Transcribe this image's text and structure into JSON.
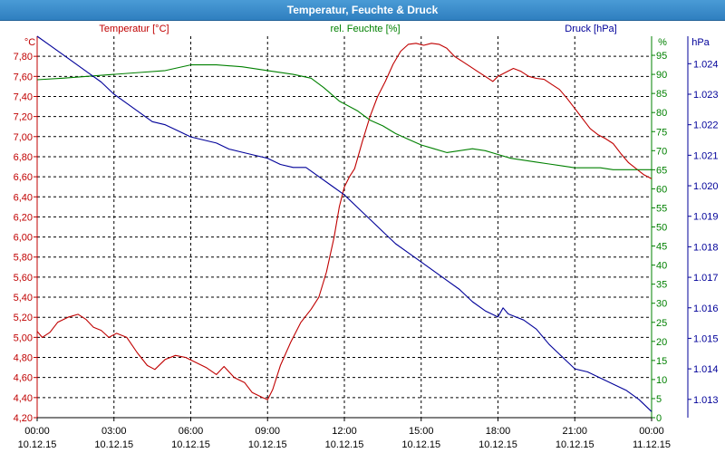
{
  "window": {
    "title": "Temperatur, Feuchte & Druck"
  },
  "colors": {
    "temperature": "#c00000",
    "humidity": "#008000",
    "pressure": "#000099",
    "grid": "#000000",
    "titlebar": "#3a8ccc"
  },
  "chart_data": {
    "type": "line",
    "title": "Temperatur, Feuchte & Druck",
    "grid": true,
    "x_ticks": [
      {
        "time": "00:00",
        "date": "10.12.15"
      },
      {
        "time": "03:00",
        "date": "10.12.15"
      },
      {
        "time": "06:00",
        "date": "10.12.15"
      },
      {
        "time": "09:00",
        "date": "10.12.15"
      },
      {
        "time": "12:00",
        "date": "10.12.15"
      },
      {
        "time": "15:00",
        "date": "10.12.15"
      },
      {
        "time": "18:00",
        "date": "10.12.15"
      },
      {
        "time": "21:00",
        "date": "10.12.15"
      },
      {
        "time": "00:00",
        "date": "11.12.15"
      }
    ],
    "x_unit": "hours",
    "xlim": [
      0,
      24
    ],
    "axes": {
      "temperature": {
        "label": "Temperatur [°C]",
        "unit": "°C",
        "ylim": [
          4.2,
          8.0
        ],
        "ticks": [
          "4,20",
          "4,40",
          "4,60",
          "4,80",
          "5,00",
          "5,20",
          "5,40",
          "5,60",
          "5,80",
          "6,00",
          "6,20",
          "6,40",
          "6,60",
          "6,80",
          "7,00",
          "7,20",
          "7,40",
          "7,60",
          "7,80"
        ]
      },
      "humidity": {
        "label": "rel. Feuchte [%]",
        "unit": "%",
        "ylim": [
          0,
          100
        ],
        "ticks": [
          "0",
          "5",
          "10",
          "15",
          "20",
          "25",
          "30",
          "35",
          "40",
          "45",
          "50",
          "55",
          "60",
          "65",
          "70",
          "75",
          "80",
          "85",
          "90",
          "95"
        ]
      },
      "pressure": {
        "label": "Druck [hPa]",
        "unit": "hPa",
        "ylim": [
          1012.4,
          1024.9
        ],
        "ticks": [
          "1.013",
          "1.014",
          "1.015",
          "1.016",
          "1.017",
          "1.018",
          "1.019",
          "1.020",
          "1.021",
          "1.022",
          "1.023",
          "1.024"
        ]
      }
    },
    "series": [
      {
        "name": "Temperatur [°C]",
        "axis": "temperature",
        "color": "#c00000",
        "x": [
          0,
          0.2,
          0.5,
          0.8,
          1.2,
          1.6,
          1.9,
          2.2,
          2.5,
          2.8,
          3.1,
          3.5,
          3.9,
          4.3,
          4.6,
          5.0,
          5.4,
          5.8,
          6.2,
          6.6,
          7.0,
          7.3,
          7.7,
          8.1,
          8.4,
          8.8,
          9.0,
          9.2,
          9.5,
          9.9,
          10.3,
          10.7,
          11.0,
          11.3,
          11.6,
          11.8,
          12.0,
          12.2,
          12.4,
          12.7,
          13.0,
          13.3,
          13.6,
          13.9,
          14.2,
          14.5,
          14.8,
          15.1,
          15.4,
          15.7,
          16.0,
          16.3,
          16.6,
          16.9,
          17.2,
          17.5,
          17.8,
          18.0,
          18.3,
          18.6,
          18.9,
          19.2,
          19.5,
          19.8,
          20.1,
          20.4,
          20.7,
          21.0,
          21.3,
          21.6,
          21.9,
          22.2,
          22.5,
          22.8,
          23.1,
          23.4,
          23.7,
          24.0
        ],
        "y": [
          5.06,
          5.0,
          5.05,
          5.15,
          5.2,
          5.23,
          5.18,
          5.1,
          5.07,
          5.0,
          5.04,
          5.0,
          4.85,
          4.72,
          4.68,
          4.78,
          4.82,
          4.8,
          4.75,
          4.7,
          4.63,
          4.71,
          4.6,
          4.55,
          4.45,
          4.4,
          4.38,
          4.48,
          4.72,
          4.95,
          5.15,
          5.28,
          5.4,
          5.65,
          6.0,
          6.3,
          6.5,
          6.6,
          6.68,
          6.95,
          7.2,
          7.4,
          7.55,
          7.72,
          7.85,
          7.92,
          7.93,
          7.91,
          7.93,
          7.92,
          7.88,
          7.8,
          7.75,
          7.7,
          7.65,
          7.6,
          7.55,
          7.6,
          7.64,
          7.68,
          7.65,
          7.6,
          7.58,
          7.57,
          7.52,
          7.47,
          7.38,
          7.28,
          7.18,
          7.08,
          7.02,
          6.98,
          6.93,
          6.83,
          6.74,
          6.68,
          6.62,
          6.58
        ]
      },
      {
        "name": "rel. Feuchte [%]",
        "axis": "humidity",
        "color": "#008000",
        "x": [
          0,
          1.0,
          2.0,
          3.0,
          4.0,
          5.0,
          6.0,
          7.0,
          8.0,
          9.0,
          10.0,
          10.7,
          11.2,
          11.8,
          12.5,
          13.0,
          13.5,
          14.0,
          14.5,
          15.0,
          15.5,
          16.0,
          16.5,
          17.0,
          17.5,
          18.0,
          18.5,
          19.0,
          19.5,
          20.0,
          20.5,
          21.0,
          21.5,
          22.0,
          22.5,
          23.0,
          23.5,
          24.0
        ],
        "y": [
          88.6,
          89.0,
          89.5,
          90.0,
          90.5,
          91.0,
          92.5,
          92.5,
          92.0,
          91.0,
          90.0,
          89.0,
          86.5,
          83.0,
          80.5,
          78.0,
          76.5,
          74.5,
          73.0,
          71.5,
          70.5,
          69.5,
          70.0,
          70.5,
          70.0,
          69.0,
          68.0,
          67.5,
          67.0,
          66.5,
          66.0,
          65.5,
          65.5,
          65.5,
          65.0,
          65.0,
          65.0,
          65.0
        ]
      },
      {
        "name": "Druck [hPa]",
        "axis": "pressure",
        "color": "#000099",
        "x": [
          0,
          0.5,
          1.0,
          1.5,
          2.0,
          2.5,
          3.0,
          3.5,
          4.0,
          4.5,
          5.0,
          5.5,
          6.0,
          6.5,
          7.0,
          7.5,
          8.0,
          8.5,
          9.0,
          9.5,
          10.0,
          10.5,
          11.0,
          11.5,
          12.0,
          12.5,
          13.0,
          13.5,
          14.0,
          14.5,
          15.0,
          15.5,
          16.0,
          16.5,
          17.0,
          17.5,
          18.0,
          18.2,
          18.4,
          18.7,
          19.0,
          19.5,
          20.0,
          20.5,
          21.0,
          21.5,
          22.0,
          22.5,
          23.0,
          23.5,
          24.0
        ],
        "y": [
          1024.9,
          1024.6,
          1024.3,
          1024.0,
          1023.7,
          1023.4,
          1023.0,
          1022.7,
          1022.4,
          1022.1,
          1022.0,
          1021.8,
          1021.6,
          1021.5,
          1021.4,
          1021.2,
          1021.1,
          1021.0,
          1020.9,
          1020.7,
          1020.6,
          1020.6,
          1020.3,
          1020.0,
          1019.7,
          1019.3,
          1018.9,
          1018.5,
          1018.1,
          1017.8,
          1017.5,
          1017.2,
          1016.9,
          1016.6,
          1016.2,
          1015.9,
          1015.7,
          1016.0,
          1015.8,
          1015.7,
          1015.6,
          1015.3,
          1014.8,
          1014.4,
          1014.0,
          1013.9,
          1013.7,
          1013.5,
          1013.3,
          1013.0,
          1012.6
        ]
      }
    ]
  }
}
